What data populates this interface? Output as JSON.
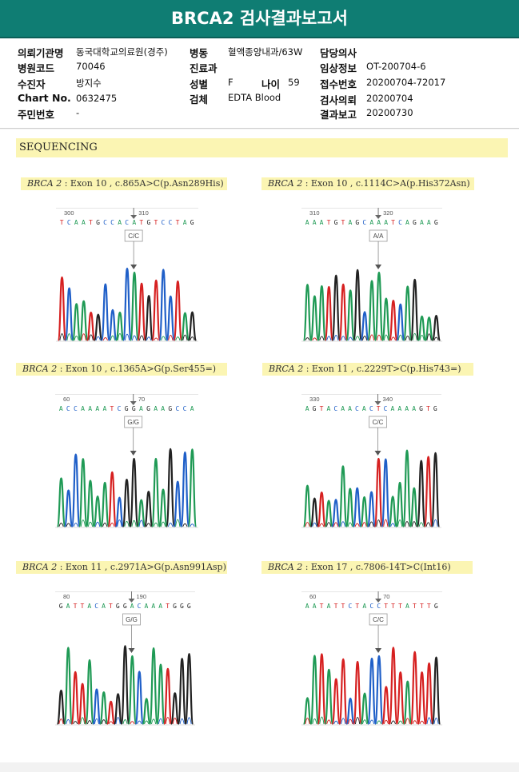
{
  "header": {
    "title": "BRCA2 검사결과보고서"
  },
  "info": {
    "institution_label": "의뢰기관명",
    "institution_value": "동국대학교의료원(경주)",
    "ward_label": "병동",
    "ward_value": "혈액종양내과/63W",
    "doctor_label": "담당의사",
    "hospital_code_label": "병원코드",
    "hospital_code_value": "70046",
    "department_label": "진료과",
    "clinical_label": "임상정보",
    "clinical_value": "OT-200704-6",
    "patient_label": "수진자",
    "patient_value": "방지수",
    "sex_label": "성별",
    "sex_value": "F",
    "age_label": "나이",
    "age_value": "59",
    "receipt_label": "접수번호",
    "receipt_value": "20200704-72017",
    "chart_label": "Chart No.",
    "chart_value": "0632475",
    "specimen_label": "검체",
    "specimen_value": "EDTA Blood",
    "request_label": "검사의뢰",
    "request_value": "20200704",
    "rrn_label": "주민번호",
    "rrn_value": "-",
    "report_label": "결과보고",
    "report_value": "20200730"
  },
  "section": {
    "title": "SEQUENCING"
  },
  "panels": [
    {
      "gene": "BRCA 2",
      "desc": " : Exon 10 , c.865A>C(p.Asn289His)",
      "ticks": [
        "300",
        "310"
      ],
      "seq": "T C A A T G C C A C A T G T C C T A G",
      "genotype": "C/C",
      "colors": {
        "A": "#1f9a55",
        "C": "#1f5fc8",
        "G": "#222222",
        "T": "#d62020"
      },
      "mark_index": 10
    },
    {
      "gene": "BRCA 2",
      "desc": " : Exon 10 , c.1114C>A(p.His372Asn)",
      "ticks": [
        "310",
        "320"
      ],
      "seq": "A A A T G T A G C A A A T C A G A A G",
      "genotype": "A/A",
      "mark_index": 10
    },
    {
      "gene": "BRCA 2",
      "desc": " : Exon 10 , c.1365A>G(p.Ser455=)",
      "ticks": [
        "60",
        "70"
      ],
      "seq": "A C C A A A A T C G G A G A A G C C A",
      "genotype": "G/G",
      "mark_index": 10
    },
    {
      "gene": "BRCA 2",
      "desc": " : Exon 11 , c.2229T>C(p.His743=)",
      "ticks": [
        "330",
        "340"
      ],
      "seq": "A G T A C A A C A C T C A A A A G T G",
      "genotype": "C/C",
      "mark_index": 10
    },
    {
      "gene": "BRCA 2",
      "desc": " : Exon 11 , c.2971A>G(p.Asn991Asp)",
      "ticks": [
        "80",
        "190"
      ],
      "seq": "G A T T A C A T G G A C A A A T G G G",
      "genotype": "G/G",
      "mark_index": 10
    },
    {
      "gene": "BRCA 2",
      "desc": " : Exon 17 , c.7806-14T>C(Int16)",
      "ticks": [
        "60",
        "70"
      ],
      "seq": "A A T A T T C T A C C T T T A T T T G",
      "genotype": "C/C",
      "mark_index": 10
    }
  ]
}
